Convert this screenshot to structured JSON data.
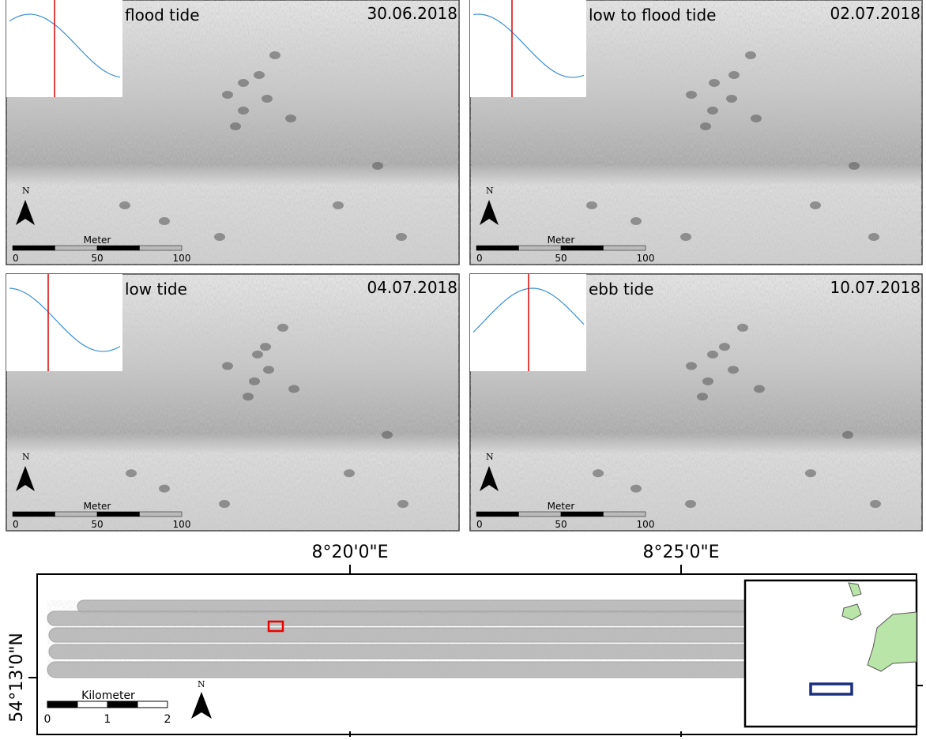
{
  "panels": [
    {
      "phase": "flood tide",
      "date": "30.06.2018",
      "north": "N",
      "scale_label": "Meter",
      "scale_ticks": [
        0,
        50,
        100
      ]
    },
    {
      "phase": "low to flood tide",
      "date": "02.07.2018",
      "north": "N",
      "scale_label": "Meter",
      "scale_ticks": [
        0,
        50,
        100
      ]
    },
    {
      "phase": "low tide",
      "date": "04.07.2018",
      "north": "N",
      "scale_label": "Meter",
      "scale_ticks": [
        0,
        50,
        100
      ]
    },
    {
      "phase": "ebb tide",
      "date": "10.07.2018",
      "north": "N",
      "scale_label": "Meter",
      "scale_ticks": [
        0,
        50,
        100
      ]
    }
  ],
  "overview": {
    "lon_labels": [
      "8°20'0\"E",
      "8°25'0\"E"
    ],
    "lat_label": "54°13'0\"N",
    "scale_label": "Kilometer",
    "scale_ticks": [
      0,
      1,
      2
    ],
    "north": "N"
  }
}
